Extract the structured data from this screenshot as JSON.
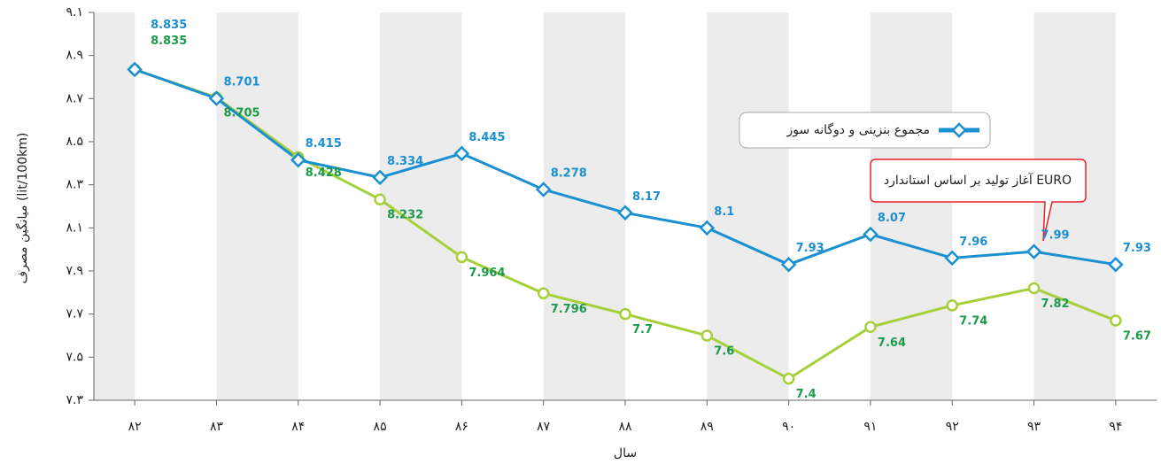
{
  "chart_data": {
    "type": "line",
    "y_label": "میانگین مصرف (lit/100km)",
    "x_label": "سال",
    "categories": [
      "۸۲",
      "۸۳",
      "۸۴",
      "۸۵",
      "۸۶",
      "۸۷",
      "۸۸",
      "۸۹",
      "۹۰",
      "۹۱",
      "۹۲",
      "۹۳",
      "۹۴"
    ],
    "series": [
      {
        "name": "مجموع بنزینی و دوگانه سوز",
        "color": "#1a8fd1",
        "marker": "diamond",
        "values": [
          8.835,
          8.701,
          8.415,
          8.334,
          8.445,
          8.278,
          8.17,
          8.1,
          7.93,
          8.07,
          7.96,
          7.99,
          7.93
        ]
      },
      {
        "color": "#a6cf3a",
        "marker": "circle",
        "values": [
          8.835,
          8.705,
          8.428,
          8.232,
          7.964,
          7.796,
          7.7,
          7.6,
          7.4,
          7.64,
          7.74,
          7.82,
          7.67
        ]
      }
    ],
    "ylim": [
      7.3,
      9.1
    ],
    "yticks": [
      {
        "value": 7.3,
        "label": "۷.۳"
      },
      {
        "value": 7.5,
        "label": "۷.۵"
      },
      {
        "value": 7.7,
        "label": "۷.۷"
      },
      {
        "value": 7.9,
        "label": "۷.۹"
      },
      {
        "value": 8.1,
        "label": "۸.۱"
      },
      {
        "value": 8.3,
        "label": "۸.۳"
      },
      {
        "value": 8.5,
        "label": "۸.۵"
      },
      {
        "value": 8.7,
        "label": "۸.۷"
      },
      {
        "value": 8.9,
        "label": "۸.۹"
      },
      {
        "value": 9.1,
        "label": "۹.۱"
      }
    ],
    "annotation": {
      "text": "آغاز تولید بر اساس استاندارد EURO",
      "category_index": 11
    }
  }
}
